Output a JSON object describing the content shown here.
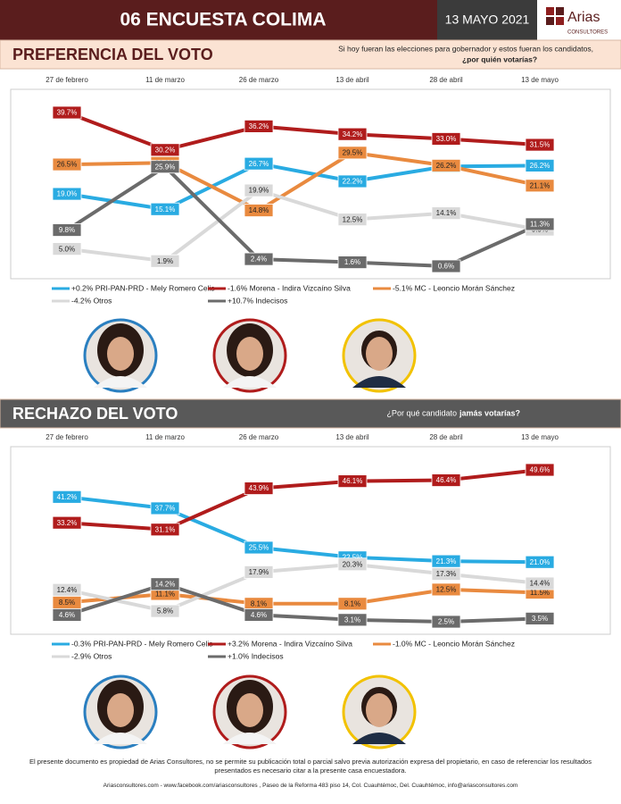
{
  "header": {
    "title": "06 ENCUESTA COLIMA",
    "date": "13 MAYO 2021",
    "logo": "Arias",
    "logo_sub": "CONSULTORES"
  },
  "chart_data": [
    {
      "type": "line",
      "title": "PREFERENCIA DEL VOTO",
      "subtitle": [
        "Si hoy fueran las elecciones para gobernador y estos fueran los candidatos,",
        "¿por quién votarías?"
      ],
      "categories": [
        "27 de febrero",
        "11 de marzo",
        "26 de marzo",
        "13 de abril",
        "28 de abril",
        "13 de mayo"
      ],
      "series": [
        {
          "name": "+0.2% PRI-PAN-PRD - Mely Romero Celis",
          "color": "#29abe2",
          "values": [
            19.0,
            15.1,
            26.7,
            22.2,
            26.0,
            26.2
          ],
          "value_labels": [
            "19.0%",
            "15.1%",
            "26.7%",
            "22.2%",
            "26.0%",
            "26.2%"
          ]
        },
        {
          "name": "-1.6% Morena - Indira Vizcaíno Silva",
          "color": "#b01c1c",
          "values": [
            39.7,
            30.2,
            36.2,
            34.2,
            33.0,
            31.5
          ],
          "value_labels": [
            "39.7%",
            "30.2%",
            "36.2%",
            "34.2%",
            "33.0%",
            "31.5%"
          ]
        },
        {
          "name": "-5.1% MC - Leoncio Morán Sánchez",
          "color": "#e98a3f",
          "values": [
            26.5,
            26.9,
            14.8,
            29.5,
            26.2,
            21.1
          ],
          "value_labels": [
            "26.5%",
            "26.9%",
            "14.8%",
            "29.5%",
            "26.2%",
            "21.1%"
          ]
        },
        {
          "name": "-4.2% Otros",
          "color": "#d9d9d9",
          "values": [
            5.0,
            1.9,
            19.9,
            12.5,
            14.1,
            9.9
          ],
          "value_labels": [
            "5.0%",
            "1.9%",
            "19.9%",
            "12.5%",
            "14.1%",
            "9.9%"
          ]
        },
        {
          "name": "+10.7% Indecisos",
          "color": "#6b6b6b",
          "values": [
            9.8,
            25.9,
            2.4,
            1.6,
            0.6,
            11.3
          ],
          "value_labels": [
            "9.8%",
            "25.9%",
            "2.4%",
            "1.6%",
            "0.6%",
            "11.3%"
          ]
        }
      ]
    },
    {
      "type": "line",
      "title": "RECHAZO DEL VOTO",
      "subtitle": [
        "¿Por qué candidato",
        "jamás votarías?"
      ],
      "categories": [
        "27 de febrero",
        "11 de marzo",
        "26 de marzo",
        "13 de abril",
        "28 de abril",
        "13 de mayo"
      ],
      "series": [
        {
          "name": "-0.3% PRI-PAN-PRD - Mely Romero Celis",
          "color": "#29abe2",
          "values": [
            41.2,
            37.7,
            25.5,
            22.5,
            21.3,
            21.0
          ],
          "value_labels": [
            "41.2%",
            "37.7%",
            "25.5%",
            "22.5%",
            "21.3%",
            "21.0%"
          ]
        },
        {
          "name": "+3.2% Morena - Indira Vizcaíno Silva",
          "color": "#b01c1c",
          "values": [
            33.2,
            31.1,
            43.9,
            46.1,
            46.4,
            49.6
          ],
          "value_labels": [
            "33.2%",
            "31.1%",
            "43.9%",
            "46.1%",
            "46.4%",
            "49.6%"
          ]
        },
        {
          "name": "-1.0% MC - Leoncio Morán Sánchez",
          "color": "#e98a3f",
          "values": [
            8.5,
            11.1,
            8.1,
            8.1,
            12.5,
            11.5
          ],
          "value_labels": [
            "8.5%",
            "11.1%",
            "8.1%",
            "8.1%",
            "12.5%",
            "11.5%"
          ]
        },
        {
          "name": "-2.9% Otros",
          "color": "#d9d9d9",
          "values": [
            12.4,
            5.8,
            17.9,
            20.3,
            17.3,
            14.4
          ],
          "value_labels": [
            "12.4%",
            "5.8%",
            "17.9%",
            "20.3%",
            "17.3%",
            "14.4%"
          ]
        },
        {
          "name": "+1.0% Indecisos",
          "color": "#6b6b6b",
          "values": [
            4.6,
            14.2,
            4.6,
            3.1,
            2.5,
            3.5
          ],
          "value_labels": [
            "4.6%",
            "14.2%",
            "4.6%",
            "3.1%",
            "2.5%",
            "3.5%"
          ]
        }
      ]
    }
  ],
  "footer": {
    "notice": "El presente documento es propiedad de Arias Consultores, no se permite su publicación total o parcial salvo previa autorización expresa del propietario, en caso de referenciar los resultados presentados es necesario citar a la presente casa encuestadora.",
    "contact": "Ariasconsultores.com - www.facebook.com/ariasconsultores , Paseo de la Reforma 483 piso 14, Col. Cuauhtémoc, Del. Cuauhtémoc, info@ariasconsultores.com"
  }
}
